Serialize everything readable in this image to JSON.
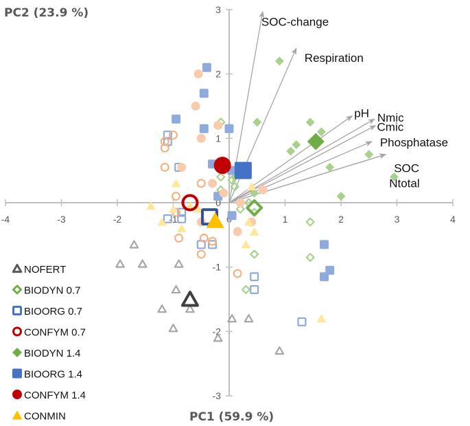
{
  "chart_data": {
    "type": "scatter",
    "title": "",
    "xlabel": "PC1 (59.9 %)",
    "ylabel": "PC2 (23.9 %)",
    "xlim": [
      -4,
      4
    ],
    "ylim": [
      -3,
      3
    ],
    "x_ticks": [
      "-4",
      "-3",
      "-2",
      "-1",
      "0",
      "1",
      "2",
      "3",
      "4"
    ],
    "y_ticks": [
      "-3",
      "-2",
      "-1",
      "0",
      "1",
      "2",
      "3"
    ],
    "grid": false,
    "legend_position": "bottom-left",
    "loadings": [
      {
        "name": "SOC-change",
        "x": 0.6,
        "y": 2.97
      },
      {
        "name": "Respiration",
        "x": 1.2,
        "y": 2.4
      },
      {
        "name": "pH",
        "x": 2.2,
        "y": 1.35
      },
      {
        "name": "Nmic",
        "x": 2.6,
        "y": 1.3
      },
      {
        "name": "Cmic",
        "x": 2.62,
        "y": 1.2
      },
      {
        "name": "Phosphatase",
        "x": 2.55,
        "y": 0.95
      },
      {
        "name": "SOC",
        "x": 2.8,
        "y": 0.75
      },
      {
        "name": "Ntotal",
        "x": 2.8,
        "y": 0.75
      }
    ],
    "series": [
      {
        "name": "NOFERT",
        "marker": "triangle-open",
        "color": "#A6A6A6",
        "mean_color": "#404040",
        "mean": [
          -0.7,
          -1.5
        ],
        "points": [
          [
            -1.7,
            -0.65
          ],
          [
            -1.95,
            -0.95
          ],
          [
            -1.55,
            -0.95
          ],
          [
            -0.9,
            -0.95
          ],
          [
            -0.95,
            -1.35
          ],
          [
            -1.2,
            -1.65
          ],
          [
            -0.7,
            -1.65
          ],
          [
            -1.0,
            -1.95
          ],
          [
            -0.2,
            -2.1
          ],
          [
            0.05,
            -1.8
          ],
          [
            0.35,
            -1.8
          ],
          [
            0.9,
            -2.3
          ]
        ]
      },
      {
        "name": "BIODYN 0.7",
        "marker": "diamond-open",
        "color": "#A9D18E",
        "mean_color": "#70AD47",
        "mean": [
          0.45,
          -0.08
        ],
        "points": [
          [
            -0.15,
            1.25
          ],
          [
            -0.15,
            0.4
          ],
          [
            -0.15,
            0.2
          ],
          [
            0.05,
            0.35
          ],
          [
            0.1,
            0.25
          ],
          [
            0.35,
            0.0
          ],
          [
            0.2,
            -0.1
          ],
          [
            0.45,
            -0.15
          ],
          [
            0.45,
            -0.8
          ],
          [
            0.3,
            -1.35
          ],
          [
            1.45,
            -0.3
          ],
          [
            1.45,
            -0.85
          ]
        ]
      },
      {
        "name": "BIOORG 0.7",
        "marker": "square-open",
        "color": "#8FAADC",
        "mean_color": "#2F5597",
        "mean": [
          -0.35,
          -0.22
        ],
        "points": [
          [
            -1.1,
            1.05
          ],
          [
            -1.1,
            0.95
          ],
          [
            -0.9,
            0.55
          ],
          [
            -1.1,
            -0.25
          ],
          [
            -0.85,
            -0.15
          ],
          [
            -0.85,
            -0.25
          ],
          [
            -0.5,
            -0.65
          ],
          [
            -0.3,
            -0.65
          ],
          [
            0.45,
            -1.15
          ],
          [
            0.45,
            -1.35
          ],
          [
            1.3,
            -1.85
          ],
          [
            0.05,
            0.5
          ]
        ]
      },
      {
        "name": "CONFYM 0.7",
        "marker": "circle-open",
        "color": "#F4B183",
        "mean_color": "#C00000",
        "mean": [
          -0.7,
          0.0
        ],
        "points": [
          [
            -1.15,
            0.95
          ],
          [
            -1.15,
            0.85
          ],
          [
            -1.0,
            1.05
          ],
          [
            -1.15,
            0.55
          ],
          [
            -0.5,
            0.3
          ],
          [
            -0.95,
            0.1
          ],
          [
            -0.95,
            -0.15
          ],
          [
            -0.9,
            -0.55
          ],
          [
            -0.45,
            -0.55
          ],
          [
            -0.5,
            -0.8
          ],
          [
            0.15,
            -1.1
          ],
          [
            -0.3,
            -0.6
          ]
        ]
      },
      {
        "name": "BIODYN 1.4",
        "marker": "diamond-filled",
        "color": "#A9D18E",
        "mean_color": "#70AD47",
        "mean": [
          1.55,
          0.95
        ],
        "points": [
          [
            0.9,
            2.2
          ],
          [
            0.5,
            1.25
          ],
          [
            1.2,
            0.9
          ],
          [
            1.1,
            0.8
          ],
          [
            1.45,
            1.25
          ],
          [
            1.65,
            1.1
          ],
          [
            1.8,
            0.55
          ],
          [
            2.5,
            0.75
          ],
          [
            2.95,
            0.4
          ],
          [
            2.0,
            0.1
          ],
          [
            0.45,
            0.15
          ],
          [
            0.1,
            0.4
          ]
        ]
      },
      {
        "name": "BIOORG 1.4",
        "marker": "square-filled",
        "color": "#8FAADC",
        "mean_color": "#4472C4",
        "mean": [
          0.25,
          0.5
        ],
        "points": [
          [
            -0.4,
            2.1
          ],
          [
            -0.45,
            1.7
          ],
          [
            -0.95,
            1.3
          ],
          [
            -0.45,
            1.15
          ],
          [
            0.0,
            1.15
          ],
          [
            -0.3,
            0.6
          ],
          [
            0.05,
            0.5
          ],
          [
            -0.2,
            0.1
          ],
          [
            1.7,
            -0.65
          ],
          [
            1.8,
            -1.05
          ],
          [
            1.7,
            -1.15
          ],
          [
            0.05,
            -0.2
          ]
        ]
      },
      {
        "name": "CONFYM 1.4",
        "marker": "circle-filled",
        "color": "#F8CBAD",
        "mean_color": "#C00000",
        "mean": [
          -0.12,
          0.58
        ],
        "points": [
          [
            -0.55,
            2.0
          ],
          [
            -0.6,
            1.5
          ],
          [
            -0.5,
            1.0
          ],
          [
            -0.2,
            1.2
          ],
          [
            -0.85,
            0.55
          ],
          [
            -0.3,
            0.3
          ],
          [
            -0.1,
            0.15
          ],
          [
            0.2,
            0.0
          ],
          [
            0.6,
            0.2
          ],
          [
            0.4,
            -0.3
          ],
          [
            0.15,
            -0.45
          ],
          [
            -0.5,
            -0.3
          ]
        ]
      },
      {
        "name": "CONMIN",
        "marker": "triangle-filled",
        "color": "#FFE699",
        "mean_color": "#FFC000",
        "mean": [
          -0.25,
          -0.28
        ],
        "points": [
          [
            -1.4,
            -0.05
          ],
          [
            -0.95,
            0.3
          ],
          [
            -1.0,
            -0.1
          ],
          [
            -1.2,
            -0.3
          ],
          [
            -0.85,
            -0.4
          ],
          [
            -0.7,
            -0.05
          ],
          [
            0.4,
            0.25
          ],
          [
            0.35,
            -0.3
          ],
          [
            0.45,
            -0.45
          ],
          [
            0.3,
            -0.65
          ],
          [
            1.65,
            -1.8
          ],
          [
            -0.55,
            -0.1
          ]
        ]
      }
    ]
  }
}
